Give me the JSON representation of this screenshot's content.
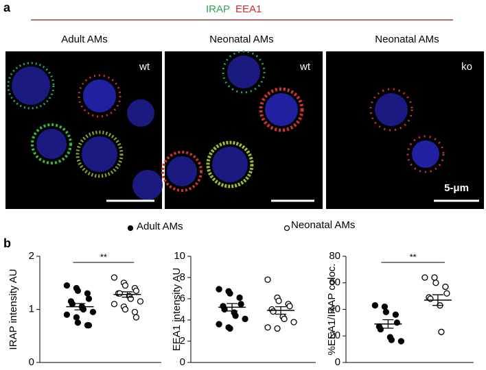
{
  "panel_a": {
    "label": "a",
    "stain_legend": [
      {
        "text": "IRAP",
        "color": "#2fa84f"
      },
      {
        "text": "EEA1",
        "color": "#d42a2a"
      }
    ],
    "columns": [
      "Adult AMs",
      "Neonatal AMs",
      "Neonatal AMs"
    ],
    "image_tags": [
      "wt",
      "wt",
      "ko"
    ],
    "scale_label": "5-μm"
  },
  "legend": [
    {
      "text": "Adult AMs",
      "fill": "#000000"
    },
    {
      "text": "Neonatal AMs",
      "fill": "#ffffff"
    }
  ],
  "panel_b": {
    "label": "b"
  },
  "chart_data": [
    {
      "type": "strip",
      "ylabel": "IRAP intensity AU",
      "ylim": [
        0,
        2
      ],
      "yticks": [
        0,
        1,
        2
      ],
      "significance": "**",
      "series": [
        {
          "fill": "#000000",
          "values": [
            1.45,
            1.4,
            1.35,
            1.3,
            1.2,
            1.15,
            1.1,
            1.05,
            1.0,
            0.95,
            0.9,
            0.85,
            0.75,
            0.7,
            0.7
          ],
          "mean": 1.05,
          "sem": 0.06
        },
        {
          "fill": "#ffffff",
          "values": [
            1.6,
            1.5,
            1.45,
            1.4,
            1.35,
            1.3,
            1.3,
            1.25,
            1.2,
            1.15,
            1.1,
            1.05,
            1.0,
            0.95,
            0.85
          ],
          "mean": 1.28,
          "sem": 0.05
        }
      ]
    },
    {
      "type": "strip",
      "ylabel": "EEA1 intensity AU",
      "ylim": [
        0,
        10
      ],
      "yticks": [
        0,
        2,
        4,
        6,
        8,
        10
      ],
      "series": [
        {
          "fill": "#000000",
          "values": [
            6.9,
            6.7,
            6.5,
            6.1,
            5.5,
            5.3,
            5.0,
            4.7,
            4.4,
            4.1,
            3.6,
            3.3,
            3.2
          ],
          "mean": 5.2,
          "sem": 0.35
        },
        {
          "fill": "#ffffff",
          "values": [
            7.8,
            6.1,
            5.8,
            5.5,
            5.3,
            5.0,
            4.8,
            4.3,
            4.1,
            3.8,
            3.3,
            3.2
          ],
          "mean": 4.9,
          "sem": 0.35
        }
      ]
    },
    {
      "type": "strip",
      "ylabel": "%EEA1/IRAP coloc.",
      "ylim": [
        0,
        80
      ],
      "yticks": [
        0,
        20,
        40,
        60,
        80
      ],
      "significance": "**",
      "series": [
        {
          "fill": "#000000",
          "values": [
            43,
            42,
            38,
            36,
            30,
            27,
            25,
            19,
            17,
            16
          ],
          "mean": 29,
          "sem": 3.2
        },
        {
          "fill": "#ffffff",
          "values": [
            64,
            64,
            60,
            57,
            52,
            49,
            48,
            43,
            23
          ],
          "mean": 47,
          "sem": 4.0
        }
      ]
    }
  ]
}
